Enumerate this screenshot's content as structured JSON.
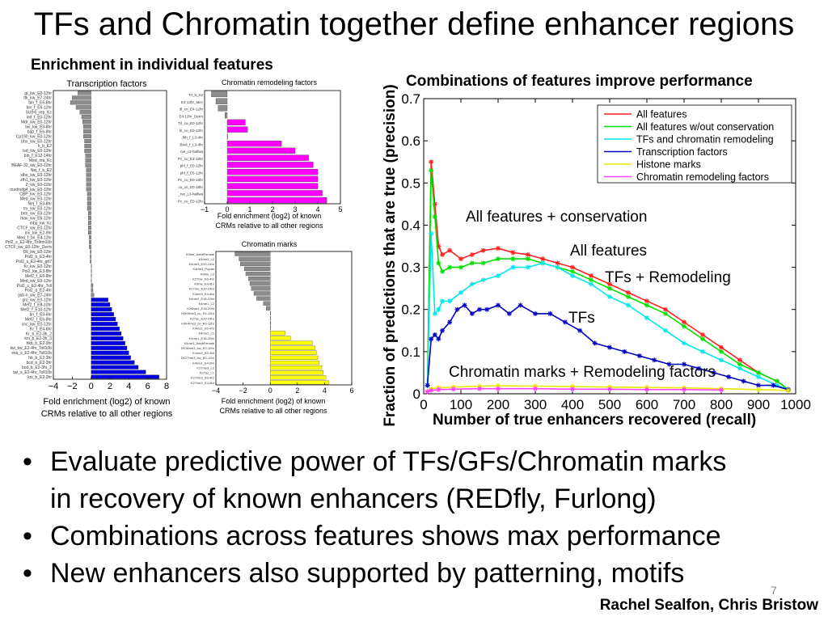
{
  "slide": {
    "title": "TFs and Chromatin together define enhancer regions",
    "left_heading": "Enrichment in individual features",
    "right_heading": "Combinations of features improve performance",
    "bullets": [
      "Evaluate predictive power of TFs/GFs/Chromatin marks",
      "in recovery of known enhancers (REDfly, Furlong)",
      "Combinations across features shows max performance",
      "New enhancers also supported by patterning, motifs"
    ],
    "page_number": "7",
    "credit": "Rachel Sealfon, Chris Bristow"
  },
  "colors": {
    "blue": "#0000e6",
    "gray": "#8c8c8c",
    "magenta": "#ff00ff",
    "yellow": "#ffff00",
    "all": "#ff2020",
    "allnc": "#00e000",
    "tfrem": "#00e8e8",
    "tfs": "#0000c0",
    "histone": "#e8e800",
    "chrom": "#ff40ff"
  },
  "chart_data": [
    {
      "type": "bar",
      "orientation": "horizontal",
      "title": "Transcription factors",
      "xlabel": "Fold enrichment (log2) of known CRMs relative to all other regions",
      "xlim": [
        -4,
        8
      ],
      "xticks": [
        -4,
        -2,
        0,
        2,
        4,
        6,
        8
      ],
      "categories": [
        "gt_kw_E0-12hr",
        "ttk_kw_E7-24hr",
        "bin_f_E6-8hr",
        "bin_f_E6-12hr",
        "SU(H)_rep_Kc",
        "ind_f_E0-12hr",
        "Mdr_kw_E0-12hr",
        "twi_kw_E3-8hr",
        "bap_f_E6-8hr",
        "Cp190_kw_E0-12hr",
        "Ubx_kw_E0-12hr",
        "h_b_E2",
        "lsd_kw_E0-12hr",
        "bin_f_E12-14hr",
        "Med_ma_Kc",
        "BEAF-32_kw_E0-12hr",
        "Nej_f_b_E2",
        "slbo_kw_E0-12hr",
        "zfh1_kw_E0-12hr",
        "Z_kw_E0-12hr",
        "modmdg4_kw_E0-12hr",
        "CBP_kw_E0-12hr",
        "Med_kw_E0-12hr",
        "Nej_f_E3-8hr",
        "trx_kw_E0-12hr",
        "brm_kw_E0-12hr",
        "mav_kw_E6-12hr",
        "mbp_kw_Kc",
        "CTCF_kw_E0-12hr",
        "inv_kw_E2-9hr",
        "Med_f_bn_E4-12hr",
        "Pol2_s_E2-4hr_Tollrm10b",
        "CTCF_kw_E0-12hr_Derm",
        "Dll_kw_E0-12hr",
        "Pol2_b_E2-4hr",
        "Pol2_s_E2-4hr_gd7",
        "Kr_kw_E0-12hr",
        "Pol2_kw_E3-8hr",
        "Mef2_f_E6-8hr",
        "Med_kw_E0-12hr",
        "Pol2_s_E2-4hr_Toll",
        "Pol2_a_E2-4hr",
        "gsb-n_kw_E7-24hr",
        "gro_kw_E0-12hr",
        "Mef2_f_E8-10hr",
        "Mef2_f_E10-12hr",
        "tin_f_E3-6hr",
        "Mef2_f_E6-8hr",
        "cnc_kw_E0-12hr",
        "Kr_f_E4-6hr",
        "Kr_b_E2-3h_2",
        "kni_b_E2-3h_3",
        "hkb_b_E2-3hr",
        "twi_kw_E2-4hr_Toll10b",
        "sna_s_E2-4hr_Toll10b",
        "hb_b_E2-3hr",
        "bcd_b_E2-3hr",
        "bcd_b_E2-3hr_2",
        "twi_s_E2-4hr_Toll10b",
        "kni_b_E2-3hr"
      ],
      "values": [
        -1.4,
        -2.0,
        -2.2,
        -1.6,
        -1.2,
        -1.0,
        -0.9,
        -0.8,
        -0.8,
        -0.8,
        -0.7,
        -0.7,
        -0.7,
        -0.6,
        -0.6,
        -0.6,
        -0.5,
        -0.5,
        -0.5,
        -0.5,
        -0.5,
        -0.4,
        -0.4,
        -0.4,
        -0.4,
        -0.3,
        -0.3,
        -0.3,
        -0.3,
        -0.3,
        -0.2,
        -0.2,
        -0.2,
        -0.1,
        -0.1,
        -0.1,
        0,
        0,
        0,
        0,
        0.2,
        0.2,
        0.3,
        1.8,
        2.0,
        2.2,
        2.4,
        2.6,
        2.8,
        3.0,
        3.2,
        3.4,
        3.6,
        3.8,
        4.0,
        4.2,
        4.6,
        5.0,
        5.8,
        7.2
      ]
    },
    {
      "type": "bar",
      "orientation": "horizontal",
      "title": "Chromatin remodeling factors",
      "xlabel": "Fold enrichment (log2) of known CRMs relative to all other regions",
      "xlim": [
        -1,
        5
      ],
      "xticks": [
        -1,
        0,
        1,
        2,
        3,
        4,
        5
      ],
      "categories": [
        "Trl_b_S2",
        "E4-12hr_Mec",
        "dl_cn_E4-12hr",
        "E4-12hr_Derm",
        "Trl_cu_E0-12hr",
        "hl_cu_E0-12hr",
        "Jhh_f_L3-4hr",
        "Brek_f_L3-4hr",
        "rve_c3-halfwa",
        "Pc_cu_E4-12hr",
        "phl_f_E0-12hr",
        "phl_f_E6-12hr",
        "Pc_cu_E0-18hr",
        "cu_cn_E0-18hr",
        "_rve_L3-halfwa",
        "Pc_cu_E0-12hr"
      ],
      "values": [
        -0.7,
        -0.5,
        -0.4,
        -0.1,
        0.8,
        0.9,
        0.0,
        2.4,
        3.0,
        3.6,
        3.8,
        4.0,
        4.0,
        4.0,
        4.2,
        4.4
      ]
    },
    {
      "type": "bar",
      "orientation": "horizontal",
      "title": "Chromatin marks",
      "xlabel": "Fold enrichment (log2) of known CRMs relative to all other regions",
      "xlim": [
        -4,
        6
      ],
      "xticks": [
        -4,
        -2,
        0,
        2,
        4,
        6
      ],
      "categories": [
        "K9me_AdultFemale",
        "K4me3_L2",
        "K4me3_E20-24hr",
        "K4me3_Pupae",
        "K9me_L2",
        "K27me_E0-4hr",
        "K9me_E4-8hr",
        "K27me_E20-24hr",
        "K4me3_E4-8hr",
        "K4me2_E16-20hr",
        "K4me1_L2",
        "K36me3_E16-20hr",
        "H3K9me3_cu_E4-12hr",
        "K27ac_E20-24hr",
        "H3K4me3_cu_E0-12hr",
        "K4me1_E0-4hr",
        "K4me1_L1",
        "K4me1_E16-20hr",
        "K4me3_AdultFemale",
        "DK36me3_kw_E0-12hr",
        "K4me2_E0-4hr",
        "DK27me3_kw_E0-12hr",
        "K4me1_E4-8hr",
        "K27me3_L2",
        "K27ac_L1",
        "K27me3_E0-4hr",
        "K27me3_E4-8hr"
      ],
      "values": [
        -2.6,
        -2.3,
        -2.2,
        -1.9,
        -1.8,
        -1.6,
        -1.5,
        -1.4,
        -1.2,
        -1.0,
        -0.5,
        -0.3,
        0,
        0,
        0,
        0,
        1.1,
        1.5,
        3.1,
        3.3,
        3.4,
        3.5,
        3.6,
        3.8,
        3.9,
        4.1,
        4.3
      ]
    },
    {
      "type": "line",
      "xlabel": "Number of true enhancers recovered (recall)",
      "ylabel": "Fraction of predictions that are true (precision)",
      "xlim": [
        0,
        1000
      ],
      "ylim": [
        0,
        0.7
      ],
      "xticks": [
        0,
        100,
        200,
        300,
        400,
        500,
        600,
        700,
        800,
        900,
        1000
      ],
      "yticks": [
        0,
        0.1,
        0.2,
        0.3,
        0.4,
        0.5,
        0.6,
        0.7
      ],
      "grid": false,
      "legend_position": "top-right",
      "series": [
        {
          "name": "All features",
          "color_key": "all",
          "x": [
            10,
            20,
            30,
            40,
            50,
            70,
            100,
            130,
            160,
            200,
            240,
            280,
            320,
            360,
            400,
            450,
            500,
            550,
            600,
            650,
            700,
            750,
            800,
            850,
            900,
            950,
            980
          ],
          "y": [
            0.02,
            0.55,
            0.45,
            0.35,
            0.33,
            0.34,
            0.32,
            0.33,
            0.34,
            0.345,
            0.335,
            0.33,
            0.32,
            0.31,
            0.3,
            0.28,
            0.26,
            0.24,
            0.22,
            0.2,
            0.17,
            0.14,
            0.11,
            0.08,
            0.05,
            0.03,
            0.01
          ]
        },
        {
          "name": "All features w/out conservation",
          "color_key": "allnc",
          "x": [
            10,
            20,
            30,
            40,
            50,
            70,
            100,
            130,
            160,
            200,
            240,
            280,
            320,
            360,
            400,
            450,
            500,
            550,
            600,
            650,
            700,
            750,
            800,
            850,
            900,
            950,
            980
          ],
          "y": [
            0.02,
            0.53,
            0.42,
            0.31,
            0.29,
            0.3,
            0.3,
            0.31,
            0.31,
            0.32,
            0.32,
            0.32,
            0.31,
            0.3,
            0.29,
            0.27,
            0.25,
            0.23,
            0.21,
            0.19,
            0.16,
            0.13,
            0.1,
            0.07,
            0.05,
            0.03,
            0.01
          ]
        },
        {
          "name": "TFs and chromatin remodeling",
          "color_key": "tfrem",
          "x": [
            10,
            20,
            30,
            40,
            50,
            70,
            100,
            130,
            160,
            200,
            240,
            280,
            320,
            360,
            400,
            450,
            500,
            550,
            600,
            650,
            700,
            750,
            800,
            850,
            900,
            950,
            980
          ],
          "y": [
            0.02,
            0.38,
            0.19,
            0.2,
            0.22,
            0.22,
            0.24,
            0.26,
            0.27,
            0.28,
            0.3,
            0.3,
            0.31,
            0.3,
            0.28,
            0.26,
            0.23,
            0.21,
            0.18,
            0.15,
            0.12,
            0.1,
            0.08,
            0.06,
            0.04,
            0.02,
            0.01
          ]
        },
        {
          "name": "Transcription factors",
          "color_key": "tfs",
          "x": [
            10,
            20,
            30,
            40,
            50,
            70,
            90,
            110,
            130,
            150,
            170,
            200,
            230,
            260,
            300,
            340,
            380,
            420,
            460,
            500,
            540,
            580,
            620,
            660,
            700,
            740,
            780,
            820,
            860,
            900,
            940,
            980
          ],
          "y": [
            0.02,
            0.13,
            0.14,
            0.13,
            0.15,
            0.17,
            0.2,
            0.21,
            0.19,
            0.2,
            0.2,
            0.21,
            0.19,
            0.21,
            0.19,
            0.19,
            0.17,
            0.15,
            0.12,
            0.11,
            0.1,
            0.09,
            0.08,
            0.07,
            0.07,
            0.06,
            0.05,
            0.04,
            0.03,
            0.02,
            0.02,
            0.01
          ]
        },
        {
          "name": "Histone marks",
          "color_key": "histone",
          "x": [
            10,
            20,
            40,
            80,
            150,
            200,
            300,
            400,
            500,
            600,
            700,
            800,
            900,
            980
          ],
          "y": [
            0.005,
            0.012,
            0.014,
            0.016,
            0.018,
            0.019,
            0.018,
            0.017,
            0.016,
            0.015,
            0.014,
            0.012,
            0.01,
            0.008
          ]
        },
        {
          "name": "Chromatin remodeling factors",
          "color_key": "chrom",
          "x": [
            10,
            20,
            40,
            80,
            150,
            200,
            300,
            400,
            500,
            600,
            700,
            800
          ],
          "y": [
            0.005,
            0.008,
            0.01,
            0.011,
            0.012,
            0.012,
            0.012,
            0.011,
            0.011,
            0.01,
            0.01,
            0.009
          ]
        }
      ],
      "annotations": [
        {
          "text": "All features + conservation"
        },
        {
          "text": "All features"
        },
        {
          "text": "TFs + Remodeling"
        },
        {
          "text": "TFs"
        },
        {
          "text": "Chromatin marks + Remodeling factors"
        }
      ]
    }
  ]
}
